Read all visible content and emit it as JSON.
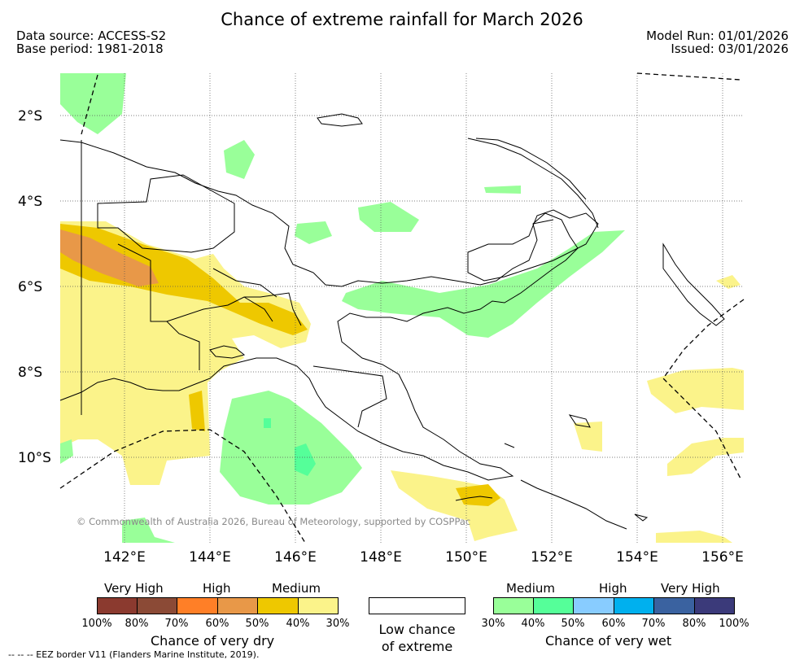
{
  "title": "Chance of extreme rainfall for March 2026",
  "data_source": "Data source: ACCESS-S2",
  "base_period": "Base period: 1981-2018",
  "model_run": "Model Run: 01/01/2026",
  "issued": "Issued: 03/01/2026",
  "copyright": "© Commonwealth of Australia 2026, Bureau of Meteorology, supported by COSPPac",
  "eez_note": "--  --  -- EEZ border V11 (Flanders Marine Institute, 2019).",
  "lat_labels": [
    "2°S",
    "4°S",
    "6°S",
    "8°S",
    "10°S"
  ],
  "lon_labels": [
    "142°E",
    "144°E",
    "146°E",
    "148°E",
    "150°E",
    "152°E",
    "154°E",
    "156°E"
  ],
  "legend": {
    "dry": {
      "levels": [
        "Very High",
        "High",
        "Medium"
      ],
      "colors": [
        "#8b3a2f",
        "#8b4a36",
        "#ff7f27",
        "#e89848",
        "#eec800",
        "#fbf38a"
      ],
      "ticks": [
        "100%",
        "80%",
        "70%",
        "60%",
        "50%",
        "40%",
        "30%"
      ],
      "caption": "Chance of very dry"
    },
    "low": {
      "line1": "Low chance",
      "line2": "of extreme"
    },
    "wet": {
      "levels": [
        "Medium",
        "High",
        "Very High"
      ],
      "colors": [
        "#99ff99",
        "#55ff99",
        "#88ccff",
        "#00b0ee",
        "#3a62a0",
        "#3b3a7a"
      ],
      "ticks": [
        "30%",
        "40%",
        "50%",
        "60%",
        "70%",
        "80%",
        "100%"
      ],
      "caption": "Chance of very wet"
    }
  }
}
